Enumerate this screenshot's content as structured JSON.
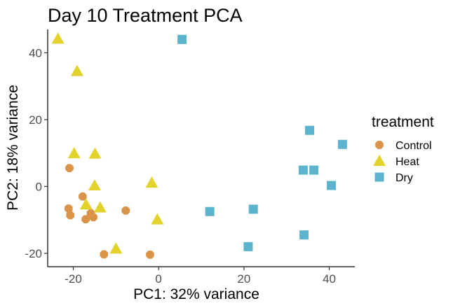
{
  "chart_data": {
    "type": "scatter",
    "title": "Day 10 Treatment PCA",
    "xlabel": "PC1: 32% variance",
    "ylabel": "PC2: 18% variance",
    "xlim": [
      -26,
      46
    ],
    "ylim": [
      -24,
      47
    ],
    "xticks": [
      -20,
      0,
      20,
      40
    ],
    "yticks": [
      -20,
      0,
      20,
      40
    ],
    "grid": false,
    "legend": {
      "title": "treatment",
      "position": "right"
    },
    "series": [
      {
        "name": "Control",
        "marker": "diamond",
        "color": "#D9944A",
        "points": [
          [
            -20.9,
            5.5
          ],
          [
            -21.1,
            -6.6
          ],
          [
            -20.7,
            -8.6
          ],
          [
            -17.8,
            -3.0
          ],
          [
            -17.1,
            -9.8
          ],
          [
            -15.9,
            -8.0
          ],
          [
            -15.3,
            -9.2
          ],
          [
            -7.7,
            -7.2
          ],
          [
            -12.8,
            -20.3
          ],
          [
            -2.0,
            -20.4
          ]
        ]
      },
      {
        "name": "Heat",
        "marker": "triangle",
        "color": "#E3D22C",
        "points": [
          [
            -23.6,
            44.2
          ],
          [
            -19.1,
            34.5
          ],
          [
            -19.8,
            9.9
          ],
          [
            -14.9,
            9.8
          ],
          [
            -17.0,
            -5.4
          ],
          [
            -15.0,
            0.3
          ],
          [
            -13.7,
            -6.3
          ],
          [
            -1.6,
            1.1
          ],
          [
            -10.0,
            -18.6
          ],
          [
            -0.3,
            -9.9
          ]
        ]
      },
      {
        "name": "Dry",
        "marker": "square",
        "color": "#5BB3CD",
        "points": [
          [
            5.5,
            44.0
          ],
          [
            35.4,
            16.8
          ],
          [
            43.1,
            12.6
          ],
          [
            33.9,
            4.9
          ],
          [
            36.4,
            4.9
          ],
          [
            40.5,
            0.3
          ],
          [
            12.0,
            -7.5
          ],
          [
            22.2,
            -6.8
          ],
          [
            34.1,
            -14.5
          ],
          [
            21.0,
            -18.0
          ]
        ]
      }
    ]
  }
}
